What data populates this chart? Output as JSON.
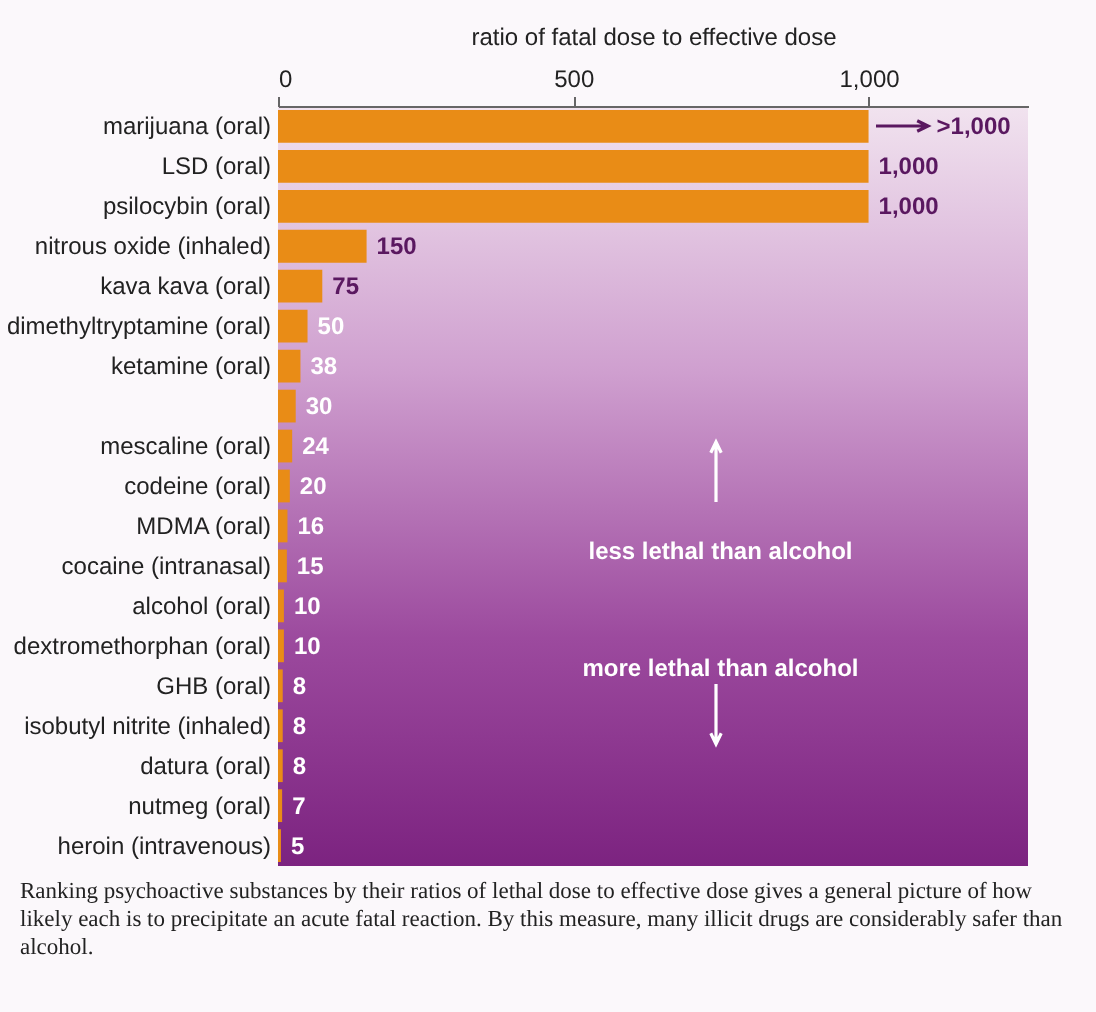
{
  "chart_data": {
    "type": "bar",
    "orientation": "horizontal",
    "xlabel": "ratio of fatal dose to effective dose",
    "categories": [
      "marijuana (oral)",
      "LSD (oral)",
      "psilocybin (oral)",
      "nitrous oxide (inhaled)",
      "kava kava (oral)",
      "dimethyltryptamine (oral)",
      "ketamine (oral)",
      null,
      "mescaline (oral)",
      "codeine (oral)",
      "MDMA (oral)",
      "cocaine (intranasal)",
      "alcohol (oral)",
      "dextromethorphan (oral)",
      "GHB (oral)",
      "isobutyl nitrite (inhaled)",
      "datura (oral)",
      "nutmeg (oral)",
      "heroin (intravenous)"
    ],
    "values": [
      1000,
      1000,
      1000,
      150,
      75,
      50,
      38,
      30,
      24,
      20,
      16,
      15,
      10,
      10,
      8,
      8,
      8,
      7,
      5
    ],
    "value_labels": [
      ">1,000",
      "1,000",
      "1,000",
      "150",
      "75",
      "50",
      "38",
      "30",
      "24",
      "20",
      "16",
      "15",
      "10",
      "10",
      "8",
      "8",
      "8",
      "7",
      "5"
    ],
    "color": "#e98c16",
    "xlim": [
      0,
      1270
    ],
    "xticks": [
      0,
      500,
      {
        "value": 1000,
        "label": "1,000"
      }
    ],
    "grid": false,
    "annotations": [
      "less lethal than alcohol",
      "more lethal than alcohol",
      "Ranking psychoactive substances by their ratios of lethal dose to effective dose gives a general picture of how likely each is to precipitate an acute fatal reaction. By this measure, many illicit drugs are considerably safer than alcohol."
    ]
  }
}
